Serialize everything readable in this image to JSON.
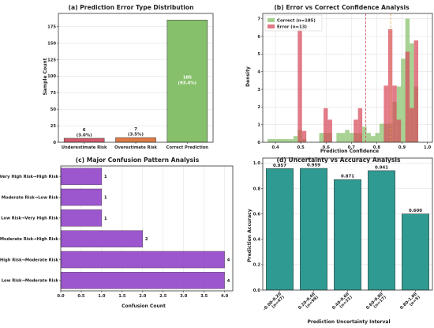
{
  "chart_data": [
    {
      "type": "bar",
      "title": "(a) Prediction Error Type Distribution",
      "xlabel": "",
      "ylabel": "Sample Count",
      "ylim": [
        0,
        195
      ],
      "yticks": [
        0,
        25,
        50,
        75,
        100,
        125,
        150,
        175
      ],
      "categories": [
        "Underestimate Risk",
        "Overestimate Risk",
        "Correct Prediction"
      ],
      "values": [
        6,
        7,
        185
      ],
      "labels": [
        "6\n(3.0%)",
        "7\n(3.5%)",
        "185\n(93.4%)"
      ],
      "colors": [
        "#d45a6a",
        "#e07b45",
        "#86c06a"
      ],
      "grid": true
    },
    {
      "type": "bar",
      "title": "(b) Error vs Correct Confidence Analysis",
      "xlabel": "Prediction Confidence",
      "ylabel": "Density",
      "xlim": [
        0.35,
        1.02
      ],
      "ylim": [
        0,
        7.3
      ],
      "xticks": [
        0.4,
        0.5,
        0.6,
        0.7,
        0.8,
        0.9,
        1.0
      ],
      "yticks": [
        0,
        1,
        2,
        3,
        4,
        5,
        6,
        7
      ],
      "legend_position": "top-left",
      "grid": true,
      "series": [
        {
          "name": "Correct (n=185)",
          "color": "#86c06a",
          "bins": [
            [
              0.369,
              0.386,
              0.18
            ],
            [
              0.386,
              0.403,
              0.18
            ],
            [
              0.403,
              0.42,
              0.18
            ],
            [
              0.42,
              0.437,
              0.18
            ],
            [
              0.437,
              0.454,
              0.18
            ],
            [
              0.454,
              0.471,
              0.18
            ],
            [
              0.471,
              0.488,
              0.35
            ],
            [
              0.488,
              0.505,
              0.7
            ],
            [
              0.505,
              0.522,
              0.18
            ],
            [
              0.573,
              0.59,
              0.53
            ],
            [
              0.59,
              0.607,
              0.53
            ],
            [
              0.607,
              0.624,
              0.53
            ],
            [
              0.641,
              0.658,
              0.53
            ],
            [
              0.658,
              0.675,
              0.53
            ],
            [
              0.675,
              0.692,
              0.7
            ],
            [
              0.692,
              0.709,
              0.53
            ],
            [
              0.709,
              0.726,
              0.53
            ],
            [
              0.726,
              0.743,
              0.53
            ],
            [
              0.743,
              0.76,
              0.88
            ],
            [
              0.76,
              0.777,
              0.53
            ],
            [
              0.777,
              0.794,
              0.35
            ],
            [
              0.794,
              0.811,
              0.53
            ],
            [
              0.811,
              0.828,
              1.05
            ],
            [
              0.828,
              0.845,
              1.05
            ],
            [
              0.845,
              0.862,
              1.05
            ],
            [
              0.862,
              0.879,
              2.29
            ],
            [
              0.879,
              0.896,
              3.16
            ],
            [
              0.896,
              0.913,
              4.74
            ],
            [
              0.913,
              0.93,
              7.01
            ],
            [
              0.93,
              0.947,
              5.61
            ],
            [
              0.947,
              0.964,
              3.16
            ]
          ]
        },
        {
          "name": "Error (n=13)",
          "color": "#d7495a",
          "bins": [
            [
              0.488,
              0.505,
              6.41
            ],
            [
              0.505,
              0.522,
              0.64
            ],
            [
              0.59,
              0.607,
              1.93
            ],
            [
              0.607,
              0.624,
              1.28
            ],
            [
              0.709,
              0.726,
              1.28
            ],
            [
              0.726,
              0.743,
              1.93
            ],
            [
              0.828,
              0.845,
              3.21
            ],
            [
              0.845,
              0.862,
              6.41
            ],
            [
              0.862,
              0.879,
              3.21
            ],
            [
              0.879,
              0.896,
              1.28
            ],
            [
              0.913,
              0.93,
              5.13
            ],
            [
              0.93,
              0.947,
              1.93
            ],
            [
              0.947,
              0.964,
              5.77
            ]
          ]
        }
      ],
      "reference_lines": [
        {
          "x": 0.757,
          "color": "#d7495a",
          "style": "dashed"
        },
        {
          "x": 0.855,
          "color": "#e0a040",
          "style": "dashed"
        }
      ]
    },
    {
      "type": "bar",
      "orientation": "horizontal",
      "title": "(c) Major Confusion Pattern Analysis",
      "xlabel": "Confusion Count",
      "ylabel": "",
      "xlim": [
        0,
        4.2
      ],
      "xticks": [
        0.0,
        0.5,
        1.0,
        1.5,
        2.0,
        2.5,
        3.0,
        3.5,
        4.0
      ],
      "categories": [
        "Very High Risk→High Risk",
        "Moderate Risk→Low Risk",
        "Low Risk→Very High Risk",
        "Moderate Risk→High Risk",
        "High Risk→Moderate Risk",
        "Low Risk→Moderate Risk"
      ],
      "values": [
        1,
        1,
        1,
        2,
        4,
        4
      ],
      "color": "#8e3fc7",
      "grid": true
    },
    {
      "type": "bar",
      "title": "(d) Uncertainty vs Accuracy Analysis",
      "xlabel": "Prediction Uncertainty Interval",
      "ylabel": "Prediction Accuracy",
      "ylim": [
        0,
        1.04
      ],
      "yticks": [
        0.0,
        0.2,
        0.4,
        0.6,
        0.8,
        1.0
      ],
      "categories": [
        "-0.00-0.20\n(n=47)",
        "0.20-0.40\n(n=98)",
        "0.40-0.60\n(n=31)",
        "0.60-0.80\n(n=17)",
        "0.80-1.00\n(n=5)"
      ],
      "values": [
        0.957,
        0.959,
        0.871,
        0.941,
        0.6
      ],
      "labels": [
        "0.957",
        "0.959",
        "0.871",
        "0.941",
        "0.600"
      ],
      "color": "#2f9a91",
      "grid": true
    }
  ]
}
